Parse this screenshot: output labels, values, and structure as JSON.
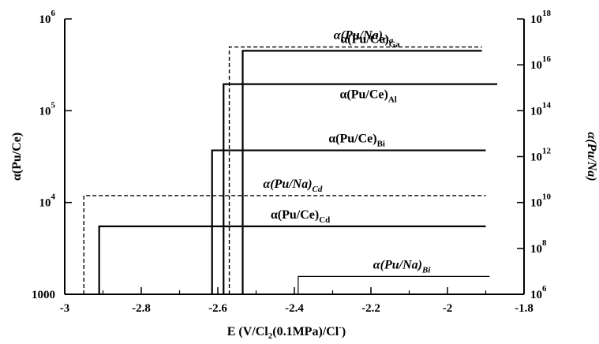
{
  "chart_data": {
    "type": "line",
    "xlabel": "E (V/Cl",
    "xlabel_sub": "2",
    "xlabel_tail": "(0.1MPa)/Cl",
    "xlabel_sup": "-",
    "xlabel_end": ")",
    "ylabel_left": "α(Pu/Ce)",
    "ylabel_right": "α(Pu/Na)",
    "xlim": [
      -3.0,
      -1.8
    ],
    "ylim_left": [
      1000,
      1000000
    ],
    "ylim_right": [
      1000000,
      1e+18
    ],
    "y_scale": "log",
    "x_ticks": [
      {
        "value": -3.0,
        "label": "-3"
      },
      {
        "value": -2.8,
        "label": "-2.8"
      },
      {
        "value": -2.6,
        "label": "-2.6"
      },
      {
        "value": -2.4,
        "label": "-2.4"
      },
      {
        "value": -2.2,
        "label": "-2.2"
      },
      {
        "value": -2.0,
        "label": "-2"
      },
      {
        "value": -1.8,
        "label": "-1.8"
      }
    ],
    "y_ticks_left": [
      {
        "value": 1000,
        "label": "1000",
        "base": "",
        "exp": ""
      },
      {
        "value": 10000,
        "label": "",
        "base": "10",
        "exp": "4"
      },
      {
        "value": 100000,
        "label": "",
        "base": "10",
        "exp": "5"
      },
      {
        "value": 1000000,
        "label": "",
        "base": "10",
        "exp": "6"
      }
    ],
    "y_ticks_right": [
      {
        "value": 1000000.0,
        "base": "10",
        "exp": "6"
      },
      {
        "value": 100000000.0,
        "base": "10",
        "exp": "8"
      },
      {
        "value": 10000000000.0,
        "base": "10",
        "exp": "10"
      },
      {
        "value": 1000000000000.0,
        "base": "10",
        "exp": "12"
      },
      {
        "value": 100000000000000.0,
        "base": "10",
        "exp": "14"
      },
      {
        "value": 1e+16,
        "base": "10",
        "exp": "16"
      },
      {
        "value": 1e+18,
        "base": "10",
        "exp": "18"
      }
    ],
    "series": [
      {
        "name": "α(Pu/Na)Ga",
        "base": "α(Pu/Na)",
        "sub": "Ga",
        "italic": true,
        "style": "dashed",
        "axis": "right",
        "x_step": -2.57,
        "x_end": -1.91,
        "y": 6e+16
      },
      {
        "name": "α(Pu/Ce)Ga",
        "base": "α(Pu/Ce)",
        "sub": "Ga",
        "italic": false,
        "style": "solid",
        "axis": "left",
        "x_step": -2.535,
        "x_end": -1.91,
        "y": 450000
      },
      {
        "name": "α(Pu/Ce)Al",
        "base": "α(Pu/Ce)",
        "sub": "Al",
        "italic": false,
        "style": "solid",
        "axis": "left",
        "x_step": -2.585,
        "x_end": -1.87,
        "y": 195000
      },
      {
        "name": "α(Pu/Ce)Bi",
        "base": "α(Pu/Ce)",
        "sub": "Bi",
        "italic": false,
        "style": "solid",
        "axis": "left",
        "x_step": -2.615,
        "x_end": -1.9,
        "y": 37000
      },
      {
        "name": "α(Pu/Na)Cd",
        "base": "α(Pu/Na)",
        "sub": "Cd",
        "italic": true,
        "style": "dashed",
        "axis": "right",
        "x_step": -2.95,
        "x_end": -1.9,
        "y": 20000000000.0
      },
      {
        "name": "α(Pu/Ce)Cd",
        "base": "α(Pu/Ce)",
        "sub": "Cd",
        "italic": false,
        "style": "solid",
        "axis": "left",
        "x_step": -2.91,
        "x_end": -1.9,
        "y": 5500
      },
      {
        "name": "α(Pu/Na)Bi",
        "base": "α(Pu/Na)",
        "sub": "Bi",
        "italic": true,
        "style": "thin",
        "axis": "right",
        "x_step": -2.39,
        "x_end": -1.89,
        "y": 6000000.0
      }
    ]
  }
}
